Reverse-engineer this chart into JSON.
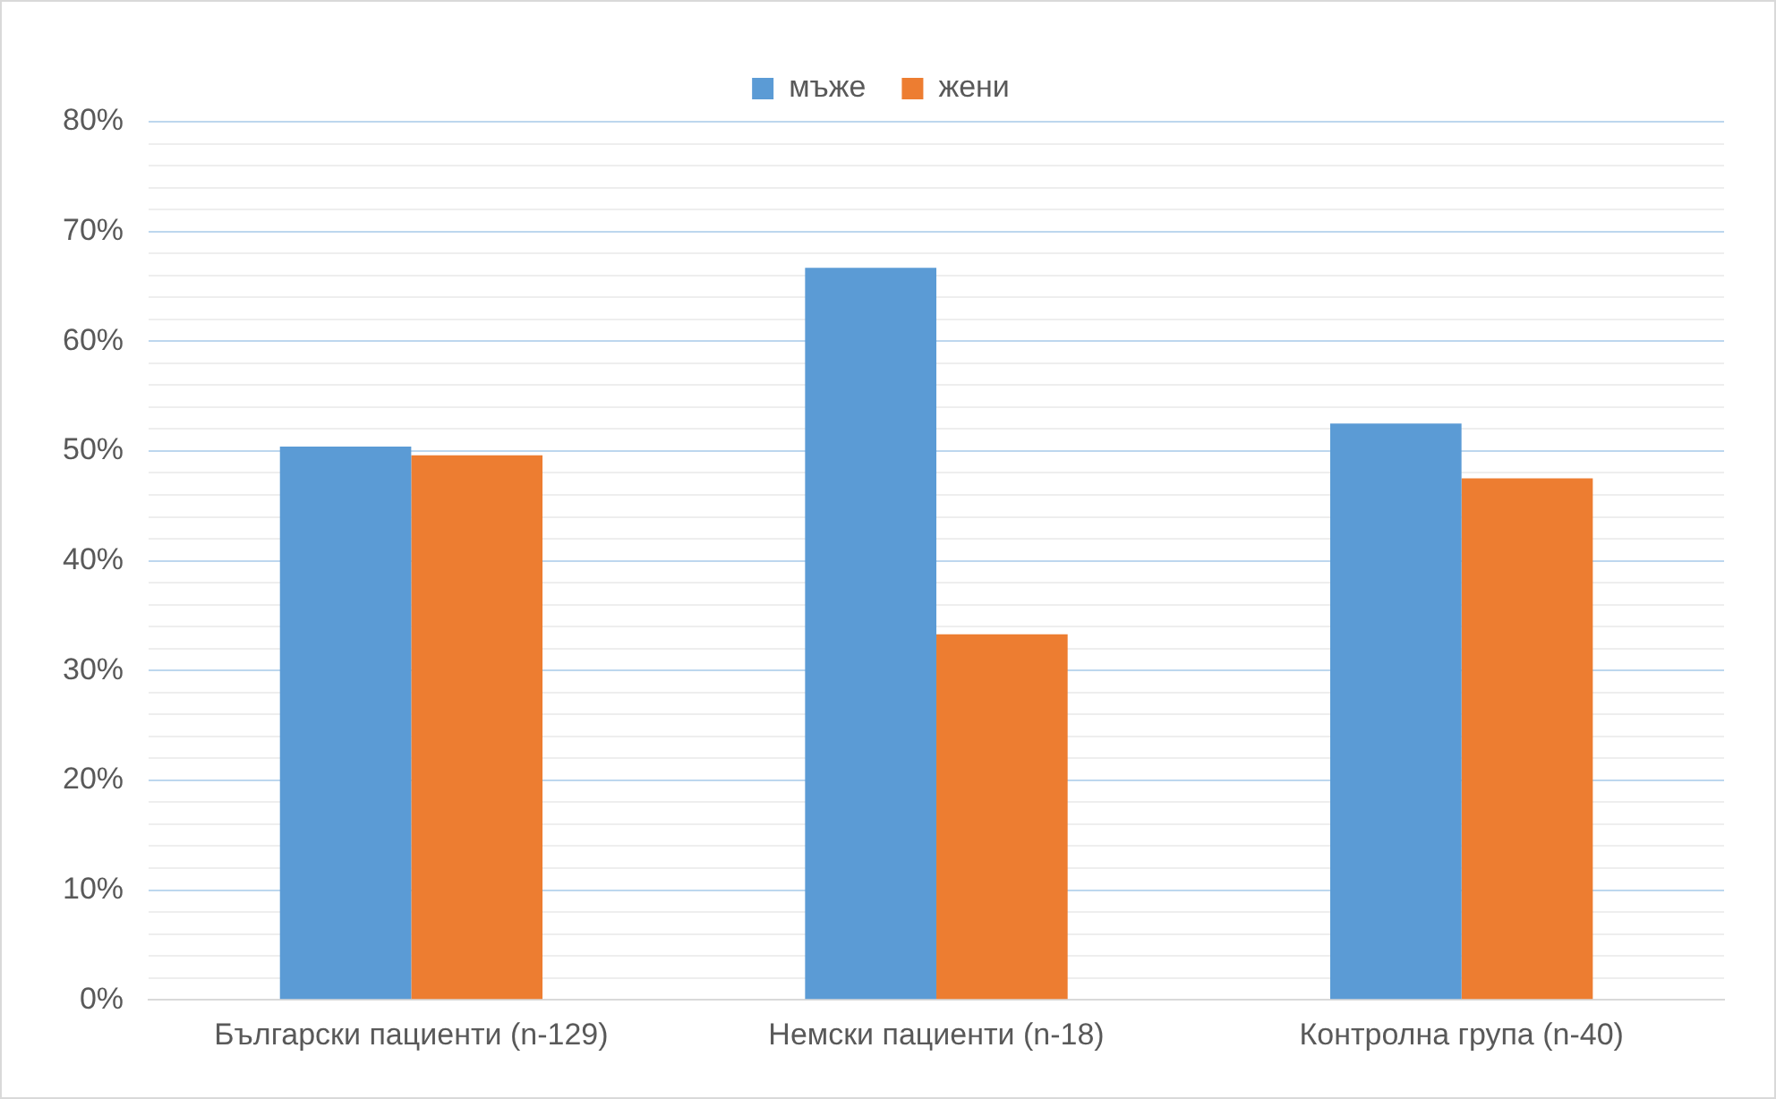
{
  "chart_data": {
    "type": "bar",
    "categories": [
      "Български пациенти (n-129)",
      "Немски пациенти (n-18)",
      "Контролна група (n-40)"
    ],
    "series": [
      {
        "name": "мъже",
        "color": "#5b9bd5",
        "values": [
          50.4,
          66.7,
          52.5
        ]
      },
      {
        "name": "жени",
        "color": "#ed7d31",
        "values": [
          49.6,
          33.3,
          47.5
        ]
      }
    ],
    "ylim": [
      0,
      80
    ],
    "yticks": [
      {
        "value": 0,
        "label": "0%"
      },
      {
        "value": 2,
        "label": null
      },
      {
        "value": 4,
        "label": null
      },
      {
        "value": 6,
        "label": null
      },
      {
        "value": 8,
        "label": null
      },
      {
        "value": 10,
        "label": "10%"
      },
      {
        "value": 12,
        "label": null
      },
      {
        "value": 14,
        "label": null
      },
      {
        "value": 16,
        "label": null
      },
      {
        "value": 18,
        "label": null
      },
      {
        "value": 20,
        "label": "20%"
      },
      {
        "value": 22,
        "label": null
      },
      {
        "value": 24,
        "label": null
      },
      {
        "value": 26,
        "label": null
      },
      {
        "value": 28,
        "label": null
      },
      {
        "value": 30,
        "label": "30%"
      },
      {
        "value": 32,
        "label": null
      },
      {
        "value": 34,
        "label": null
      },
      {
        "value": 36,
        "label": null
      },
      {
        "value": 38,
        "label": null
      },
      {
        "value": 40,
        "label": "40%"
      },
      {
        "value": 42,
        "label": null
      },
      {
        "value": 44,
        "label": null
      },
      {
        "value": 46,
        "label": null
      },
      {
        "value": 48,
        "label": null
      },
      {
        "value": 50,
        "label": "50%"
      },
      {
        "value": 52,
        "label": null
      },
      {
        "value": 54,
        "label": null
      },
      {
        "value": 56,
        "label": null
      },
      {
        "value": 58,
        "label": null
      },
      {
        "value": 60,
        "label": "60%"
      },
      {
        "value": 62,
        "label": null
      },
      {
        "value": 64,
        "label": null
      },
      {
        "value": 66,
        "label": null
      },
      {
        "value": 68,
        "label": null
      },
      {
        "value": 70,
        "label": "70%"
      },
      {
        "value": 72,
        "label": null
      },
      {
        "value": 74,
        "label": null
      },
      {
        "value": 76,
        "label": null
      },
      {
        "value": 78,
        "label": null
      },
      {
        "value": 80,
        "label": "80%"
      }
    ],
    "grid": "y",
    "legend": "top"
  }
}
